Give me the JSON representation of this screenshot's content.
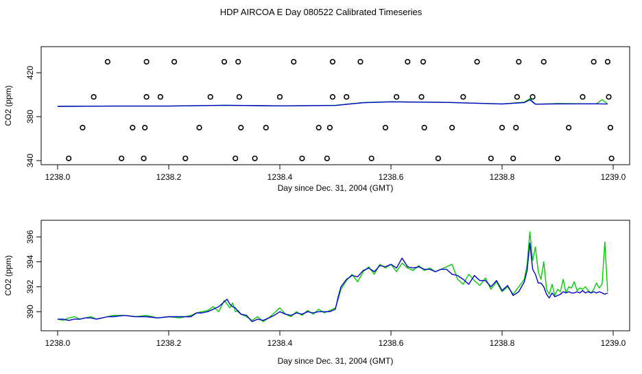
{
  "figure": {
    "title": "HDP AIRCOA E  Day 080522  Calibrated Timeseries"
  },
  "chart_data": [
    {
      "type": "scatter+line",
      "title": "",
      "xlabel": "Day since Dec. 31, 2004 (GMT)",
      "ylabel": "CO2 (ppm)",
      "xlim": [
        1238.0,
        1239.0
      ],
      "ylim": [
        340,
        440
      ],
      "xticks": [
        "1238.0",
        "1238.2",
        "1238.4",
        "1238.6",
        "1238.8",
        "1239.0"
      ],
      "yticks": [
        "340",
        "380",
        "420"
      ],
      "xtick_values": [
        1238.0,
        1238.2,
        1238.4,
        1238.6,
        1238.8,
        1239.0
      ],
      "ytick_values": [
        340,
        380,
        420
      ],
      "grid": false,
      "series": [
        {
          "style": "open-circle",
          "color": "#000000",
          "x": [
            1238.02,
            1238.045,
            1238.065,
            1238.09,
            1238.115,
            1238.135,
            1238.155,
            1238.157,
            1238.16,
            1238.16,
            1238.185,
            1238.21,
            1238.23,
            1238.255,
            1238.275,
            1238.3,
            1238.32,
            1238.325,
            1238.327,
            1238.33,
            1238.355,
            1238.375,
            1238.4,
            1238.425,
            1238.44,
            1238.47,
            1238.485,
            1238.49,
            1238.495,
            1238.495,
            1238.52,
            1238.545,
            1238.565,
            1238.59,
            1238.61,
            1238.63,
            1238.655,
            1238.658,
            1238.66,
            1238.685,
            1238.71,
            1238.73,
            1238.755,
            1238.78,
            1238.8,
            1238.82,
            1238.825,
            1238.827,
            1238.83,
            1238.855,
            1238.875,
            1238.9,
            1238.92,
            1238.945,
            1238.965,
            1238.99,
            1238.992,
            1238.995,
            1238.997
          ],
          "y": [
            342,
            370,
            398,
            430,
            342,
            370,
            342,
            370,
            398,
            430,
            398,
            430,
            342,
            370,
            398,
            430,
            342,
            430,
            398,
            370,
            342,
            370,
            398,
            430,
            342,
            370,
            342,
            370,
            398,
            430,
            398,
            430,
            342,
            370,
            398,
            430,
            398,
            430,
            370,
            342,
            370,
            398,
            430,
            342,
            370,
            342,
            370,
            398,
            430,
            398,
            430,
            342,
            370,
            398,
            430,
            430,
            398,
            370,
            342
          ]
        },
        {
          "style": "line",
          "color": "#00cc00",
          "x": [
            1238.0,
            1238.1,
            1238.2,
            1238.3,
            1238.4,
            1238.5,
            1238.55,
            1238.6,
            1238.7,
            1238.8,
            1238.84,
            1238.85,
            1238.86,
            1238.9,
            1238.97,
            1238.98,
            1238.99
          ],
          "y": [
            389.4,
            389.6,
            389.6,
            390.4,
            389.8,
            390.4,
            392.8,
            393.6,
            393.0,
            391.6,
            393.2,
            396.4,
            391.4,
            392.0,
            391.6,
            395.6,
            391.6
          ]
        },
        {
          "style": "line",
          "color": "#0000cc",
          "x": [
            1238.0,
            1238.1,
            1238.2,
            1238.3,
            1238.4,
            1238.5,
            1238.55,
            1238.6,
            1238.7,
            1238.8,
            1238.84,
            1238.85,
            1238.86,
            1238.9,
            1238.97,
            1238.98,
            1238.99
          ],
          "y": [
            389.4,
            389.6,
            389.6,
            390.4,
            389.8,
            390.2,
            392.7,
            393.5,
            393.0,
            391.5,
            392.8,
            395.4,
            391.4,
            391.6,
            391.7,
            391.6,
            391.5
          ]
        }
      ]
    },
    {
      "type": "line",
      "title": "",
      "xlabel": "Day since Dec. 31, 2004 (GMT)",
      "ylabel": "CO2 (ppm)",
      "xlim": [
        1238.0,
        1239.0
      ],
      "ylim": [
        388.8,
        397.0
      ],
      "xticks": [
        "1238.0",
        "1238.2",
        "1238.4",
        "1238.6",
        "1238.8",
        "1239.0"
      ],
      "yticks": [
        "390",
        "392",
        "394",
        "396"
      ],
      "xtick_values": [
        1238.0,
        1238.2,
        1238.4,
        1238.6,
        1238.8,
        1239.0
      ],
      "ytick_values": [
        390,
        392,
        394,
        396
      ],
      "grid": false,
      "series": [
        {
          "color": "#00cc00",
          "x": [
            1238.0,
            1238.01,
            1238.02,
            1238.03,
            1238.04,
            1238.05,
            1238.06,
            1238.07,
            1238.08,
            1238.09,
            1238.1,
            1238.12,
            1238.14,
            1238.16,
            1238.18,
            1238.2,
            1238.22,
            1238.24,
            1238.25,
            1238.26,
            1238.27,
            1238.28,
            1238.29,
            1238.3,
            1238.305,
            1238.31,
            1238.315,
            1238.32,
            1238.325,
            1238.33,
            1238.34,
            1238.35,
            1238.36,
            1238.37,
            1238.38,
            1238.39,
            1238.4,
            1238.41,
            1238.42,
            1238.43,
            1238.44,
            1238.45,
            1238.46,
            1238.47,
            1238.48,
            1238.49,
            1238.5,
            1238.505,
            1238.51,
            1238.52,
            1238.53,
            1238.54,
            1238.55,
            1238.56,
            1238.57,
            1238.58,
            1238.59,
            1238.6,
            1238.61,
            1238.62,
            1238.63,
            1238.64,
            1238.65,
            1238.66,
            1238.67,
            1238.68,
            1238.69,
            1238.7,
            1238.71,
            1238.72,
            1238.73,
            1238.74,
            1238.75,
            1238.76,
            1238.77,
            1238.78,
            1238.79,
            1238.8,
            1238.81,
            1238.82,
            1238.83,
            1238.84,
            1238.845,
            1238.85,
            1238.855,
            1238.86,
            1238.865,
            1238.87,
            1238.875,
            1238.88,
            1238.885,
            1238.89,
            1238.895,
            1238.9,
            1238.905,
            1238.91,
            1238.915,
            1238.92,
            1238.925,
            1238.93,
            1238.935,
            1238.94,
            1238.945,
            1238.95,
            1238.955,
            1238.96,
            1238.965,
            1238.97,
            1238.975,
            1238.98,
            1238.985,
            1238.99
          ],
          "y": [
            389.4,
            389.3,
            389.5,
            389.6,
            389.4,
            389.5,
            389.6,
            389.4,
            389.5,
            389.6,
            389.7,
            389.7,
            389.6,
            389.7,
            389.5,
            389.6,
            389.5,
            389.7,
            389.9,
            390.0,
            390.1,
            390.4,
            390.0,
            390.9,
            390.6,
            390.3,
            390.7,
            390.0,
            390.1,
            389.8,
            389.6,
            389.3,
            389.6,
            389.2,
            389.5,
            389.9,
            390.3,
            389.8,
            389.6,
            390.0,
            389.7,
            390.1,
            389.8,
            390.2,
            389.9,
            390.1,
            390.3,
            391.0,
            391.8,
            392.5,
            393.0,
            392.4,
            393.2,
            393.6,
            393.0,
            393.8,
            393.5,
            393.8,
            393.2,
            393.9,
            393.5,
            393.3,
            393.7,
            393.3,
            393.5,
            393.2,
            393.4,
            393.6,
            393.8,
            392.6,
            392.2,
            393.0,
            392.5,
            392.1,
            392.7,
            391.8,
            392.4,
            391.6,
            392.0,
            391.4,
            392.0,
            392.6,
            393.8,
            396.4,
            394.1,
            395.2,
            393.2,
            392.6,
            394.0,
            391.8,
            391.4,
            392.2,
            391.3,
            391.8,
            391.6,
            392.6,
            391.5,
            392.0,
            391.9,
            392.4,
            391.7,
            391.9,
            391.8,
            392.0,
            391.7,
            391.5,
            391.8,
            392.3,
            391.9,
            392.2,
            395.6,
            391.6
          ]
        },
        {
          "color": "#0000cc",
          "x": [
            1238.0,
            1238.01,
            1238.02,
            1238.03,
            1238.04,
            1238.05,
            1238.06,
            1238.07,
            1238.08,
            1238.09,
            1238.1,
            1238.12,
            1238.14,
            1238.16,
            1238.18,
            1238.2,
            1238.22,
            1238.24,
            1238.25,
            1238.26,
            1238.27,
            1238.28,
            1238.29,
            1238.3,
            1238.305,
            1238.31,
            1238.315,
            1238.32,
            1238.325,
            1238.33,
            1238.34,
            1238.35,
            1238.36,
            1238.37,
            1238.38,
            1238.39,
            1238.4,
            1238.41,
            1238.42,
            1238.43,
            1238.44,
            1238.45,
            1238.46,
            1238.47,
            1238.48,
            1238.49,
            1238.5,
            1238.505,
            1238.51,
            1238.52,
            1238.53,
            1238.54,
            1238.55,
            1238.56,
            1238.57,
            1238.58,
            1238.59,
            1238.6,
            1238.61,
            1238.62,
            1238.63,
            1238.64,
            1238.65,
            1238.66,
            1238.67,
            1238.68,
            1238.69,
            1238.7,
            1238.71,
            1238.72,
            1238.73,
            1238.74,
            1238.75,
            1238.76,
            1238.77,
            1238.78,
            1238.79,
            1238.8,
            1238.81,
            1238.82,
            1238.83,
            1238.84,
            1238.845,
            1238.85,
            1238.855,
            1238.86,
            1238.865,
            1238.87,
            1238.875,
            1238.88,
            1238.885,
            1238.89,
            1238.895,
            1238.9,
            1238.905,
            1238.91,
            1238.915,
            1238.92,
            1238.925,
            1238.93,
            1238.935,
            1238.94,
            1238.945,
            1238.95,
            1238.955,
            1238.96,
            1238.965,
            1238.97,
            1238.975,
            1238.98,
            1238.985,
            1238.99
          ],
          "y": [
            389.4,
            389.4,
            389.3,
            389.4,
            389.4,
            389.5,
            389.5,
            389.4,
            389.5,
            389.6,
            389.6,
            389.7,
            389.6,
            389.6,
            389.5,
            389.6,
            389.6,
            389.6,
            389.9,
            389.9,
            390.0,
            390.2,
            390.4,
            390.8,
            391.0,
            390.6,
            390.4,
            390.3,
            390.0,
            389.8,
            389.7,
            389.2,
            389.4,
            389.3,
            389.5,
            389.7,
            390.0,
            389.8,
            389.7,
            389.9,
            389.8,
            390.0,
            389.9,
            390.0,
            390.0,
            390.0,
            390.2,
            391.2,
            392.0,
            392.6,
            392.9,
            392.8,
            393.3,
            393.5,
            393.2,
            393.7,
            393.6,
            393.8,
            393.5,
            394.3,
            393.6,
            393.5,
            393.6,
            393.4,
            393.4,
            393.2,
            393.4,
            393.4,
            393.0,
            392.9,
            392.6,
            392.2,
            392.9,
            392.5,
            392.5,
            392.0,
            392.5,
            391.7,
            392.1,
            391.3,
            391.6,
            392.4,
            393.3,
            395.5,
            393.4,
            393.0,
            392.3,
            392.3,
            392.0,
            391.4,
            391.1,
            391.5,
            391.2,
            391.3,
            391.4,
            391.6,
            391.5,
            391.6,
            391.5,
            391.5,
            391.6,
            391.5,
            391.7,
            391.5,
            391.6,
            391.5,
            391.6,
            391.5,
            391.6,
            391.5,
            391.4,
            391.5
          ]
        }
      ]
    }
  ]
}
